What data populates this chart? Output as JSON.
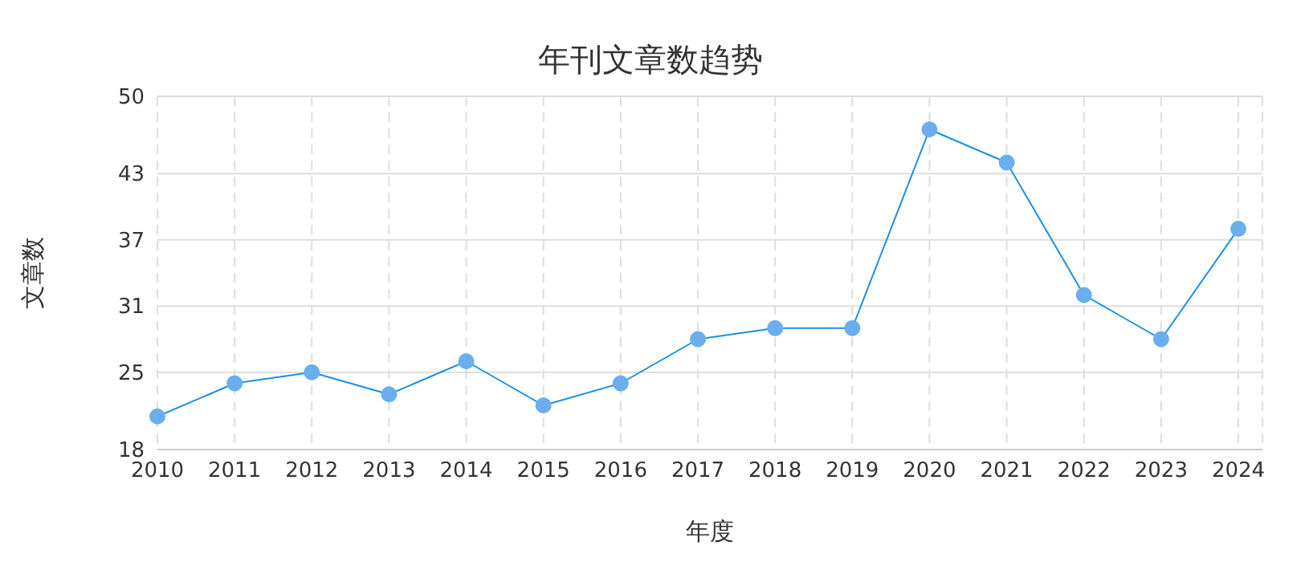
{
  "chart_data": {
    "type": "line",
    "title": "年刊文章数趋势",
    "xlabel": "年度",
    "ylabel": "文章数",
    "categories": [
      "2010",
      "2011",
      "2012",
      "2013",
      "2014",
      "2015",
      "2016",
      "2017",
      "2018",
      "2019",
      "2020",
      "2021",
      "2022",
      "2023",
      "2024"
    ],
    "series": [
      {
        "color": "#1a8fe6",
        "values": [
          21,
          24,
          25,
          23,
          26,
          22,
          24,
          28,
          29,
          29,
          47,
          44,
          32,
          28,
          38
        ]
      }
    ],
    "ylim": [
      18,
      50
    ],
    "yticks": [
      18,
      25,
      31,
      37,
      43,
      50
    ],
    "grid": true,
    "marker": "circle",
    "line_style": "solid"
  }
}
